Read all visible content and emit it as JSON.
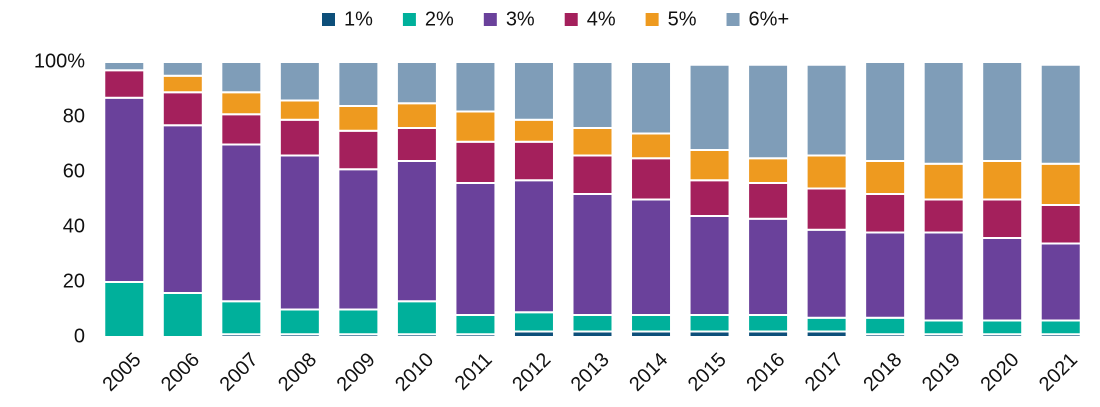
{
  "chart_data": {
    "type": "stacked_bar",
    "categories": [
      "2005",
      "2006",
      "2007",
      "2008",
      "2009",
      "2010",
      "2011",
      "2012",
      "2013",
      "2014",
      "2015",
      "2016",
      "2017",
      "2018",
      "2019",
      "2020",
      "2021"
    ],
    "series": [
      {
        "name": "1%",
        "color": "#0d4f7a",
        "values": [
          0,
          0,
          1,
          1,
          1,
          1,
          1,
          2,
          2,
          2,
          2,
          2,
          2,
          1,
          1,
          1,
          1
        ]
      },
      {
        "name": "2%",
        "color": "#00b09b",
        "values": [
          20,
          16,
          12,
          9,
          9,
          12,
          7,
          7,
          6,
          6,
          6,
          6,
          5,
          6,
          5,
          5,
          5
        ]
      },
      {
        "name": "3%",
        "color": "#6a419b",
        "values": [
          67,
          61,
          57,
          56,
          51,
          51,
          48,
          48,
          44,
          42,
          36,
          35,
          32,
          31,
          32,
          30,
          28
        ]
      },
      {
        "name": "4%",
        "color": "#a4205c",
        "values": [
          10,
          12,
          11,
          13,
          14,
          12,
          15,
          14,
          14,
          15,
          13,
          13,
          15,
          14,
          12,
          14,
          14
        ]
      },
      {
        "name": "5%",
        "color": "#ee9a1f",
        "values": [
          0,
          6,
          8,
          7,
          9,
          9,
          11,
          8,
          10,
          9,
          11,
          9,
          12,
          12,
          13,
          14,
          15
        ]
      },
      {
        "name": "6%+",
        "color": "#7f9db8",
        "values": [
          3,
          5,
          11,
          14,
          16,
          15,
          18,
          21,
          24,
          26,
          31,
          34,
          33,
          36,
          37,
          36,
          36
        ]
      }
    ],
    "ylim": [
      0,
      100
    ],
    "yticks": [
      0,
      20,
      40,
      60,
      80,
      {
        "value": 100,
        "label": "100%"
      }
    ],
    "legend": "top"
  }
}
